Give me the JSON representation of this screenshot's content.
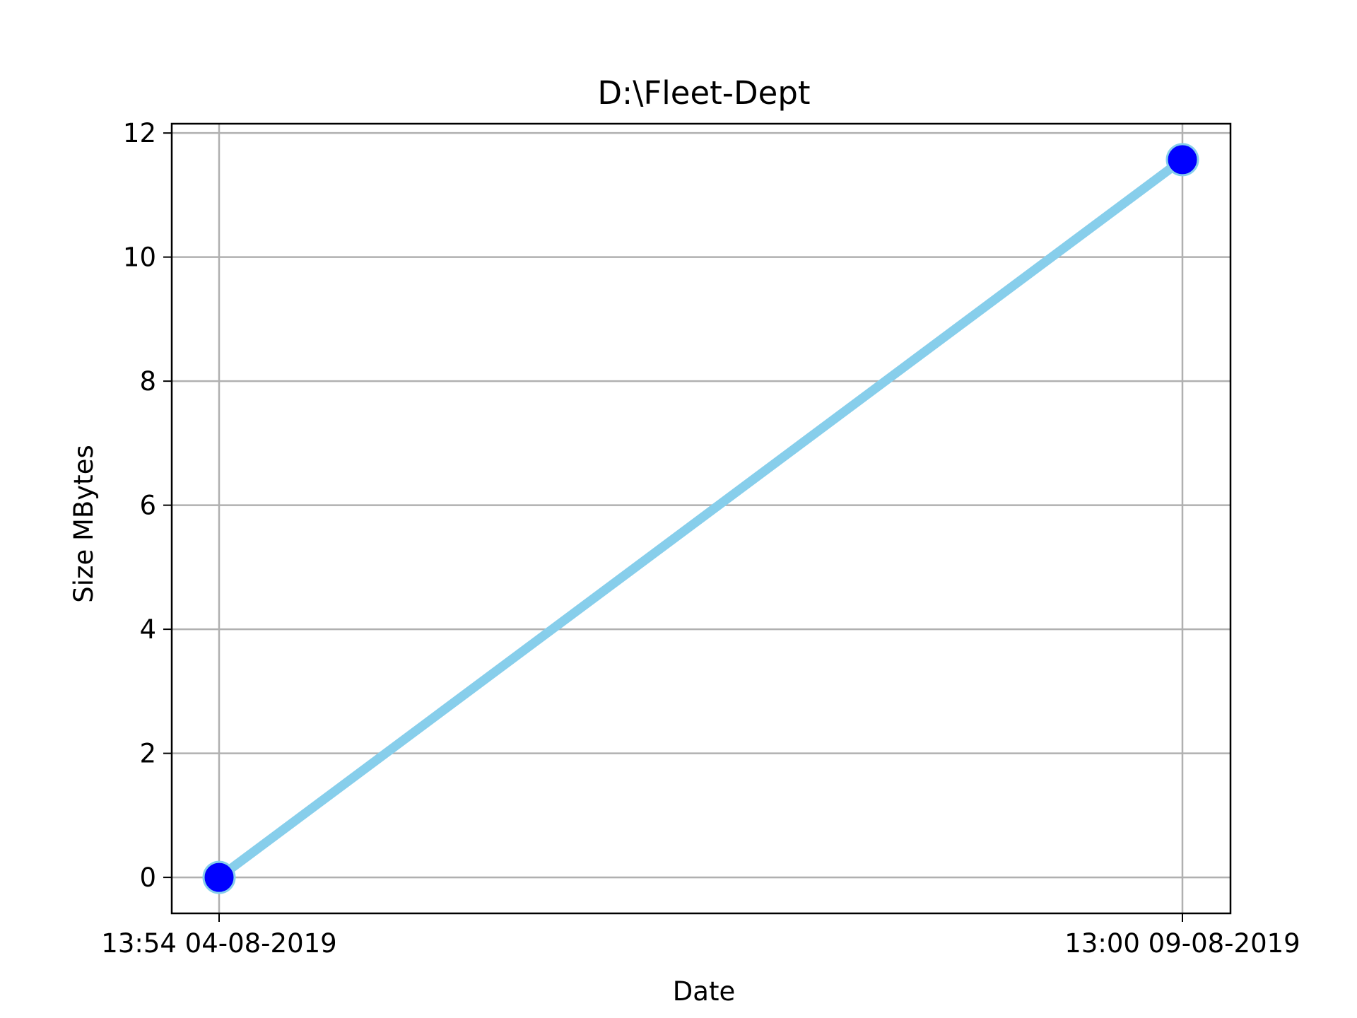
{
  "chart_data": {
    "type": "line",
    "title": "D:\\Fleet-Dept",
    "xlabel": "Date",
    "ylabel": "Size MBytes",
    "x": [
      "13:54 04-08-2019",
      "13:00 09-08-2019"
    ],
    "x_ticks": [
      "13:54 04-08-2019",
      "13:00 09-08-2019"
    ],
    "y_ticks": [
      "0",
      "2",
      "4",
      "6",
      "8",
      "10",
      "12"
    ],
    "series": [
      {
        "values": [
          0,
          11.57
        ],
        "line_color": "#87ceeb",
        "marker_color": "#0000ff"
      }
    ],
    "ylim": [
      -0.58,
      12.15
    ],
    "grid": true
  }
}
